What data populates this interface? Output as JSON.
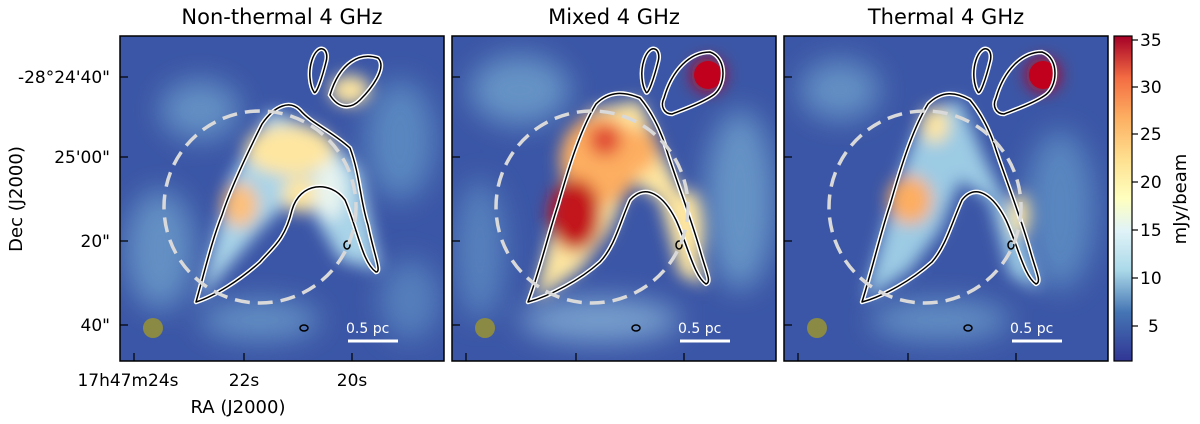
{
  "panels": [
    {
      "title": "Non-thermal 4 GHz",
      "scalebar_label": "0.5 pc"
    },
    {
      "title": "Mixed 4 GHz",
      "scalebar_label": "0.5 pc"
    },
    {
      "title": "Thermal 4 GHz",
      "scalebar_label": "0.5 pc"
    }
  ],
  "axes": {
    "ylabel": "Dec (J2000)",
    "xlabel": "RA (J2000)",
    "yticks": [
      "-28°24'40\"",
      "25'00\"",
      "20\"",
      "40\""
    ],
    "xticks": [
      "17h47m24s",
      "22s",
      "20s"
    ]
  },
  "colorbar": {
    "label": "mJy/beam",
    "ticks": [
      "35",
      "30",
      "25",
      "20",
      "15",
      "10",
      "5"
    ],
    "range": [
      1,
      35
    ]
  },
  "colors": {
    "background_map": "#3a55a8",
    "contour": "#000000",
    "dashed_circle": "#d9d9d9",
    "beam": "#8a8a45"
  }
}
